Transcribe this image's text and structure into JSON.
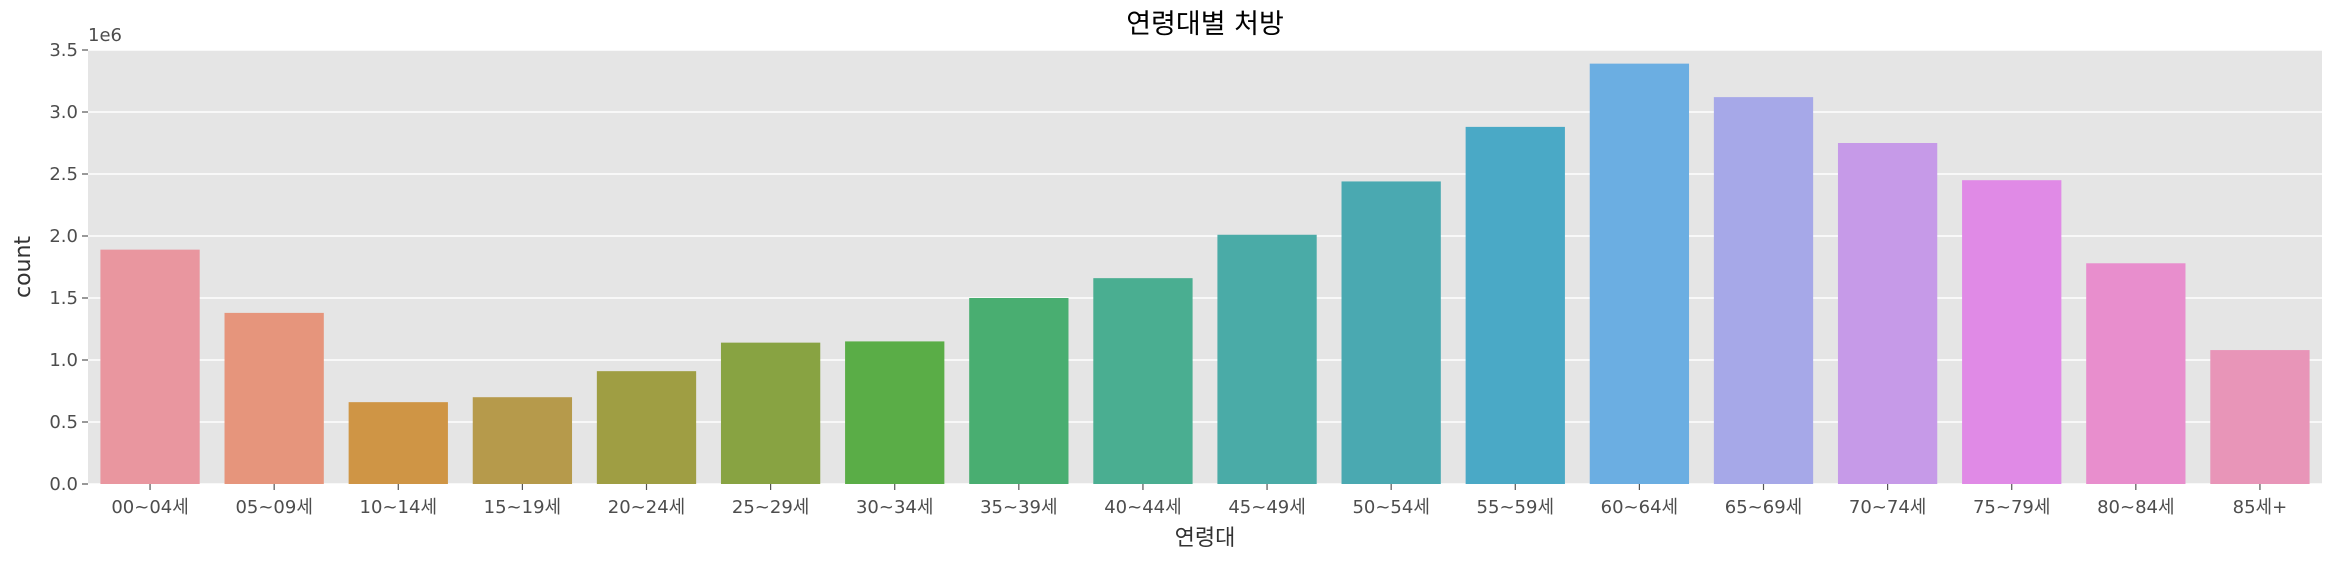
{
  "chart_data": {
    "type": "bar",
    "title": "연령대별 처방",
    "xlabel": "연령대",
    "ylabel": "count",
    "y_offset_label": "1e6",
    "y_multiplier": 1000000,
    "ylim": [
      0,
      3.5
    ],
    "yticks": [
      0.0,
      0.5,
      1.0,
      1.5,
      2.0,
      2.5,
      3.0,
      3.5
    ],
    "ytick_labels": [
      "0.0",
      "0.5",
      "1.0",
      "1.5",
      "2.0",
      "2.5",
      "3.0",
      "3.5"
    ],
    "grid": true,
    "categories": [
      "00~04세",
      "05~09세",
      "10~14세",
      "15~19세",
      "20~24세",
      "25~29세",
      "30~34세",
      "35~39세",
      "40~44세",
      "45~49세",
      "50~54세",
      "55~59세",
      "60~64세",
      "65~69세",
      "70~74세",
      "75~79세",
      "80~84세",
      "85세+"
    ],
    "values": [
      1.89,
      1.38,
      0.66,
      0.7,
      0.91,
      1.14,
      1.15,
      1.5,
      1.66,
      2.01,
      2.44,
      2.88,
      3.39,
      3.12,
      2.75,
      2.45,
      1.78,
      1.08
    ],
    "colors": [
      "#e9969f",
      "#e6957c",
      "#cf9545",
      "#b69a4b",
      "#9f9e43",
      "#88a342",
      "#5aad47",
      "#49ae71",
      "#4aae91",
      "#4aaba7",
      "#4aa9b1",
      "#4aa9c6",
      "#6baee2",
      "#a6a8e8",
      "#c69ae8",
      "#e08ae6",
      "#e88ecd",
      "#e895b8"
    ]
  }
}
